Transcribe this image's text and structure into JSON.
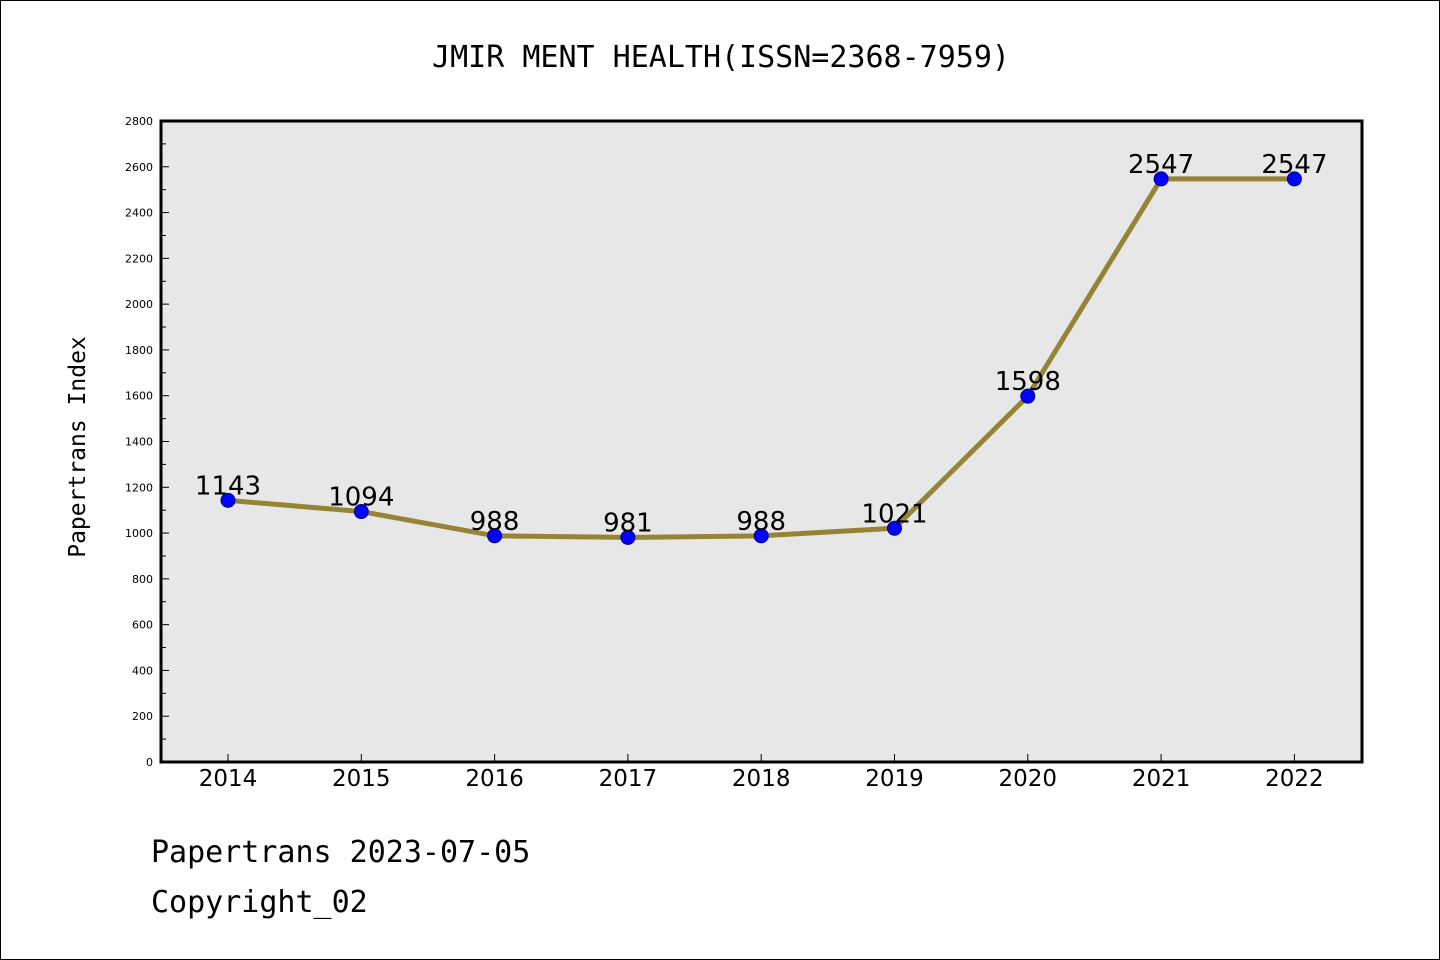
{
  "chart_data": {
    "type": "line",
    "title": "JMIR MENT HEALTH(ISSN=2368-7959)",
    "ylabel": "Papertrans Index",
    "xlabel": "",
    "categories": [
      "2014",
      "2015",
      "2016",
      "2017",
      "2018",
      "2019",
      "2020",
      "2021",
      "2022"
    ],
    "series": [
      {
        "values": [
          1143,
          1094,
          988,
          981,
          988,
          1021,
          1598,
          2547,
          2547
        ]
      }
    ],
    "data_labels": [
      "1143",
      "1094",
      "988",
      "981",
      "988",
      "1021",
      "1598",
      "2547",
      "2547"
    ],
    "ylim": [
      0,
      2800
    ],
    "y_major_ticks": [
      0,
      200,
      400,
      600,
      800,
      1000,
      1200,
      1400,
      1600,
      1800,
      2000,
      2200,
      2400,
      2600,
      2800
    ],
    "y_minor_step": 100,
    "grid": false,
    "legend": "none",
    "colors": {
      "line": "#968436",
      "marker": "#0000ff",
      "marker_edge": "#000080",
      "plot_background": "#e7e7e7",
      "frame": "#000000"
    }
  },
  "footer": {
    "line1": "Papertrans 2023-07-05",
    "line2": "Copyright_02"
  }
}
